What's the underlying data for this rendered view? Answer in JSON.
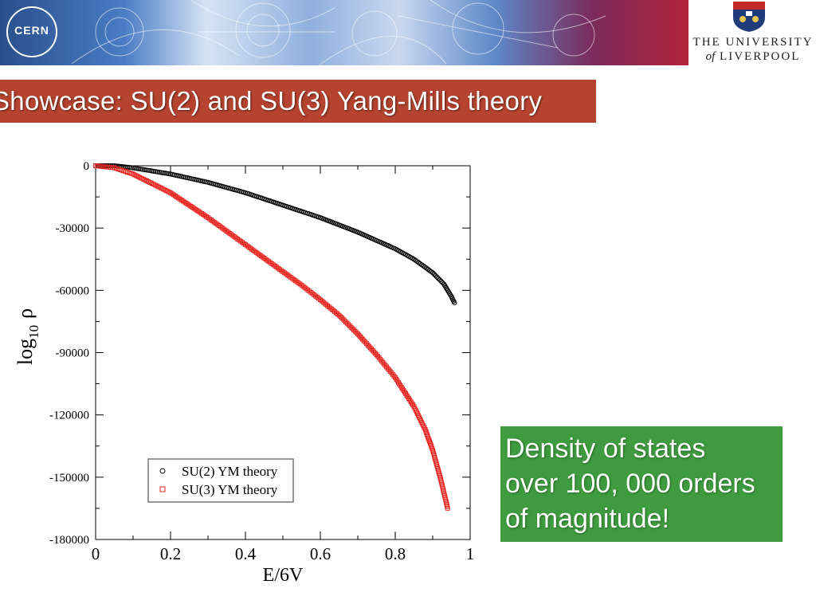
{
  "header": {
    "cern_logo_text": "CERN",
    "university_line1": "THE UNIVERSITY",
    "university_of": "of",
    "university_line2": "LIVERPOOL"
  },
  "slide": {
    "title": "Showcase: SU(2) and SU(3) Yang-Mills theory",
    "callout": {
      "line1": "Density of states",
      "line2": "over 100, 000 orders",
      "line3": "of magnitude!"
    },
    "colors": {
      "title_bar": "#b5432f",
      "callout_bg": "#3f9b3f"
    }
  },
  "chart_data": {
    "type": "scatter",
    "xlabel": "E/6V",
    "ylabel_main": "log",
    "ylabel_sub": "10",
    "ylabel_symbol": "ρ",
    "xlim": [
      0,
      1
    ],
    "ylim": [
      -180000,
      0
    ],
    "x_ticks": [
      0,
      0.2,
      0.4,
      0.6,
      0.8,
      1
    ],
    "x_tick_labels": [
      "0",
      "0.2",
      "0.4",
      "0.6",
      "0.8",
      "1"
    ],
    "y_ticks": [
      0,
      -30000,
      -60000,
      -90000,
      -120000,
      -150000,
      -180000
    ],
    "y_tick_labels": [
      "0",
      "-30000",
      "-60000",
      "-90000",
      "-120000",
      "-150000",
      "-180000"
    ],
    "grid": false,
    "legend_position": "bottom-left",
    "series": [
      {
        "name": "SU(2) YM theory",
        "color": "#000000",
        "marker": "circle",
        "x": [
          0,
          0.05,
          0.1,
          0.15,
          0.2,
          0.25,
          0.3,
          0.35,
          0.4,
          0.45,
          0.5,
          0.55,
          0.6,
          0.65,
          0.7,
          0.75,
          0.8,
          0.85,
          0.9,
          0.93,
          0.95,
          0.958
        ],
        "y": [
          0,
          0,
          -1000,
          -2500,
          -4000,
          -6000,
          -8000,
          -10500,
          -13000,
          -16000,
          -19000,
          -22000,
          -25000,
          -28500,
          -32000,
          -36000,
          -40000,
          -45000,
          -51500,
          -57000,
          -63000,
          -66000
        ]
      },
      {
        "name": "SU(3) YM theory",
        "color": "#e8231e",
        "marker": "square",
        "x": [
          0,
          0.05,
          0.1,
          0.15,
          0.2,
          0.25,
          0.3,
          0.35,
          0.4,
          0.45,
          0.5,
          0.55,
          0.6,
          0.65,
          0.7,
          0.75,
          0.8,
          0.85,
          0.88,
          0.9,
          0.92,
          0.94
        ],
        "y": [
          0,
          -1000,
          -4000,
          -8500,
          -13000,
          -19000,
          -25000,
          -31500,
          -38000,
          -44500,
          -51000,
          -57500,
          -64500,
          -72000,
          -81000,
          -91000,
          -102000,
          -116000,
          -127000,
          -137000,
          -150000,
          -165000
        ]
      }
    ]
  }
}
